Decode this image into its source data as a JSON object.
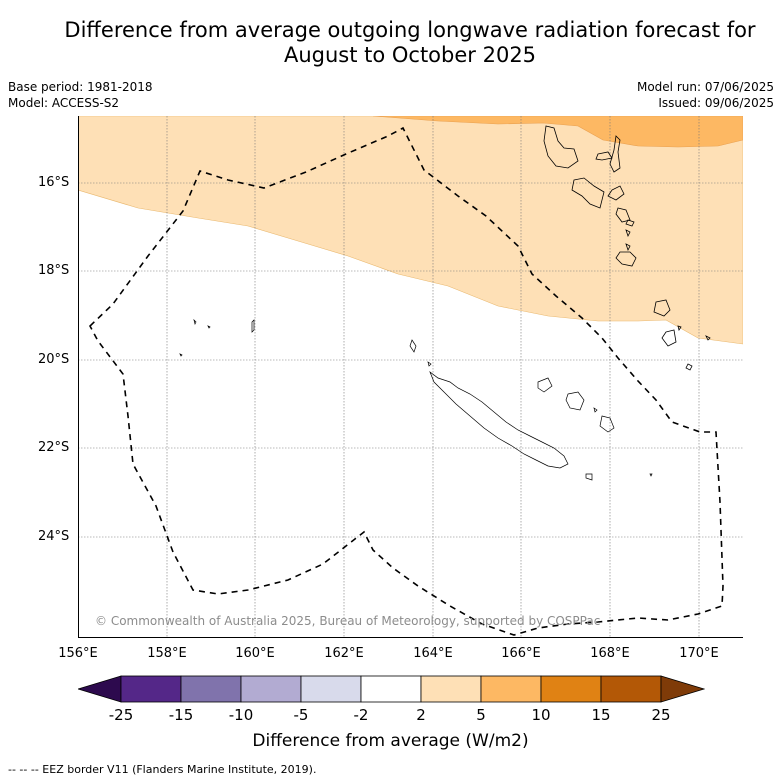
{
  "title_line1": "Difference from average outgoing longwave radiation forecast for",
  "title_line2": "August to October 2025",
  "base_period": "Base period: 1981-2018",
  "model": "Model: ACCESS-S2",
  "model_run": "Model run: 07/06/2025",
  "issued": "Issued: 09/06/2025",
  "lat_labels": [
    "16°S",
    "18°S",
    "20°S",
    "22°S",
    "24°S"
  ],
  "lon_labels": [
    "156°E",
    "158°E",
    "160°E",
    "162°E",
    "164°E",
    "166°E",
    "168°E",
    "170°E"
  ],
  "credit": "© Commonwealth of Australia 2025, Bureau of Meteorology, supported by COSPPac",
  "colorbar": {
    "ticks": [
      "-25",
      "-15",
      "-10",
      "-5",
      "-2",
      "2",
      "5",
      "10",
      "15",
      "25"
    ],
    "colors": {
      "below_-25": "#2d0a4e",
      "-25_-15": "#542788",
      "-15_-10": "#8073ac",
      "-10_-5": "#b2abd2",
      "-5_-2": "#d8daeb",
      "-2_2": "#ffffff",
      "2_5": "#fee0b6",
      "5_10": "#fdb863",
      "10_15": "#e08214",
      "15_25": "#b35806",
      "above_25": "#7f3b08"
    },
    "label": "Difference from average (W/m2)"
  },
  "footnote": "--  --  -- EEZ border V11 (Flanders Marine Institute, 2019)."
}
